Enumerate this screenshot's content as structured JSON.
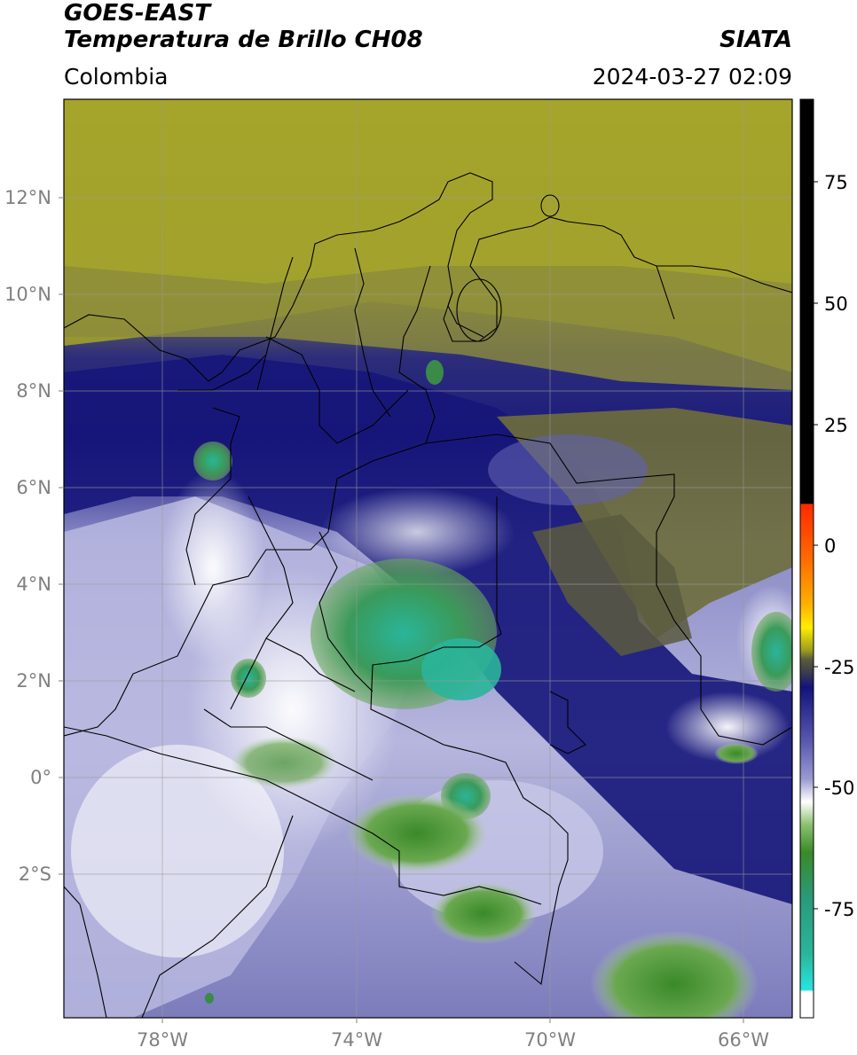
{
  "header": {
    "satellite": "GOES-EAST",
    "product": "Temperatura de Brillo CH08",
    "region": "Colombia",
    "org": "SIATA",
    "datetime": "2024-03-27 02:09"
  },
  "axes": {
    "lat_ticks": [
      "12°N",
      "10°N",
      "8°N",
      "6°N",
      "4°N",
      "2°N",
      "0°",
      "2°S"
    ],
    "lon_ticks": [
      "78°W",
      "74°W",
      "70°W",
      "66°W"
    ]
  },
  "colorbar": {
    "labels": [
      "75",
      "50",
      "25",
      "0",
      "-25",
      "-50",
      "-75"
    ],
    "colors": {
      "black": "#000000",
      "red": "#ff2a00",
      "orange": "#ff9900",
      "yellow": "#ffee00",
      "olive": "#9c9c20",
      "dark_olive": "#5a5a3a",
      "navy": "#13137a",
      "lavender": "#9a9ad2",
      "white": "#ffffff",
      "green": "#3a8a28",
      "teal": "#2ab59a",
      "cyan": "#28e5e0"
    }
  }
}
